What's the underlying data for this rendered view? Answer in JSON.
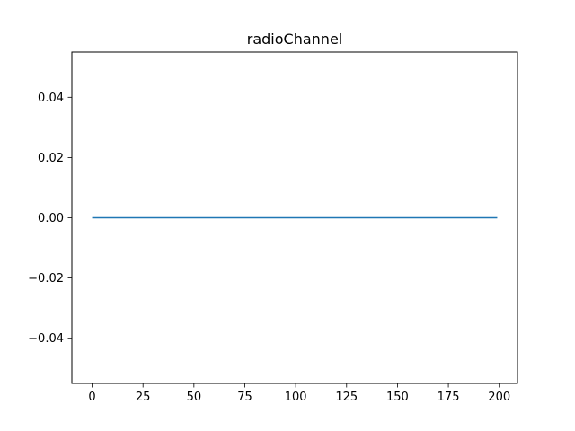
{
  "chart_data": {
    "type": "line",
    "title": "radioChannel",
    "xlabel": "",
    "ylabel": "",
    "xlim": [
      -9.95,
      208.95
    ],
    "ylim": [
      -0.055,
      0.055
    ],
    "x_ticks": [
      0,
      25,
      50,
      75,
      100,
      125,
      150,
      175,
      200
    ],
    "x_tick_labels": [
      "0",
      "25",
      "50",
      "75",
      "100",
      "125",
      "150",
      "175",
      "200"
    ],
    "y_ticks": [
      -0.04,
      -0.02,
      0.0,
      0.02,
      0.04
    ],
    "y_tick_labels": [
      "−0.04",
      "−0.02",
      "0.00",
      "0.02",
      "0.04"
    ],
    "grid": false,
    "series": [
      {
        "color": "#1f77b4",
        "x": [
          0,
          199
        ],
        "y": [
          0,
          0
        ]
      }
    ]
  }
}
